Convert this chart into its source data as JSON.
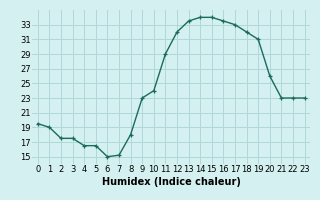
{
  "x": [
    0,
    1,
    2,
    3,
    4,
    5,
    6,
    7,
    8,
    9,
    10,
    11,
    12,
    13,
    14,
    15,
    16,
    17,
    18,
    19,
    20,
    21,
    22,
    23
  ],
  "y": [
    19.5,
    19,
    17.5,
    17.5,
    16.5,
    16.5,
    15,
    15.2,
    18,
    23,
    24,
    29,
    32,
    33.5,
    34,
    34,
    33.5,
    33,
    32,
    31,
    26,
    23,
    23,
    23
  ],
  "xlabel": "Humidex (Indice chaleur)",
  "ylabel": "",
  "xlim": [
    -0.5,
    23.5
  ],
  "ylim": [
    14,
    35
  ],
  "yticks": [
    15,
    17,
    19,
    21,
    23,
    25,
    27,
    29,
    31,
    33
  ],
  "xticks": [
    0,
    1,
    2,
    3,
    4,
    5,
    6,
    7,
    8,
    9,
    10,
    11,
    12,
    13,
    14,
    15,
    16,
    17,
    18,
    19,
    20,
    21,
    22,
    23
  ],
  "line_color": "#1a6b5a",
  "marker": "+",
  "bg_color": "#d4f0f0",
  "grid_color": "#b0d8d8",
  "label_fontsize": 7,
  "tick_fontsize": 6
}
